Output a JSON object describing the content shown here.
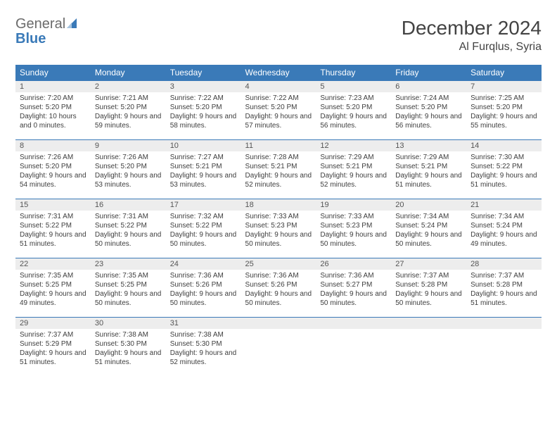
{
  "logo": {
    "text1": "General",
    "text2": "Blue",
    "color_general": "#6b6b6b",
    "color_blue": "#3a7ab8"
  },
  "header": {
    "title": "December 2024",
    "location": "Al Furqlus, Syria"
  },
  "styling": {
    "header_bg": "#3a7ab8",
    "header_text": "#ffffff",
    "daynum_bg": "#ededed",
    "border_color": "#3a7ab8",
    "body_bg": "#ffffff",
    "text_color": "#3e3e3e",
    "title_fontsize": 28,
    "location_fontsize": 16,
    "dayheader_fontsize": 12,
    "daynum_fontsize": 11,
    "body_fontsize": 10
  },
  "weekdays": [
    "Sunday",
    "Monday",
    "Tuesday",
    "Wednesday",
    "Thursday",
    "Friday",
    "Saturday"
  ],
  "days": [
    {
      "n": "1",
      "sunrise": "Sunrise: 7:20 AM",
      "sunset": "Sunset: 5:20 PM",
      "day": "Daylight: 10 hours and 0 minutes."
    },
    {
      "n": "2",
      "sunrise": "Sunrise: 7:21 AM",
      "sunset": "Sunset: 5:20 PM",
      "day": "Daylight: 9 hours and 59 minutes."
    },
    {
      "n": "3",
      "sunrise": "Sunrise: 7:22 AM",
      "sunset": "Sunset: 5:20 PM",
      "day": "Daylight: 9 hours and 58 minutes."
    },
    {
      "n": "4",
      "sunrise": "Sunrise: 7:22 AM",
      "sunset": "Sunset: 5:20 PM",
      "day": "Daylight: 9 hours and 57 minutes."
    },
    {
      "n": "5",
      "sunrise": "Sunrise: 7:23 AM",
      "sunset": "Sunset: 5:20 PM",
      "day": "Daylight: 9 hours and 56 minutes."
    },
    {
      "n": "6",
      "sunrise": "Sunrise: 7:24 AM",
      "sunset": "Sunset: 5:20 PM",
      "day": "Daylight: 9 hours and 56 minutes."
    },
    {
      "n": "7",
      "sunrise": "Sunrise: 7:25 AM",
      "sunset": "Sunset: 5:20 PM",
      "day": "Daylight: 9 hours and 55 minutes."
    },
    {
      "n": "8",
      "sunrise": "Sunrise: 7:26 AM",
      "sunset": "Sunset: 5:20 PM",
      "day": "Daylight: 9 hours and 54 minutes."
    },
    {
      "n": "9",
      "sunrise": "Sunrise: 7:26 AM",
      "sunset": "Sunset: 5:20 PM",
      "day": "Daylight: 9 hours and 53 minutes."
    },
    {
      "n": "10",
      "sunrise": "Sunrise: 7:27 AM",
      "sunset": "Sunset: 5:21 PM",
      "day": "Daylight: 9 hours and 53 minutes."
    },
    {
      "n": "11",
      "sunrise": "Sunrise: 7:28 AM",
      "sunset": "Sunset: 5:21 PM",
      "day": "Daylight: 9 hours and 52 minutes."
    },
    {
      "n": "12",
      "sunrise": "Sunrise: 7:29 AM",
      "sunset": "Sunset: 5:21 PM",
      "day": "Daylight: 9 hours and 52 minutes."
    },
    {
      "n": "13",
      "sunrise": "Sunrise: 7:29 AM",
      "sunset": "Sunset: 5:21 PM",
      "day": "Daylight: 9 hours and 51 minutes."
    },
    {
      "n": "14",
      "sunrise": "Sunrise: 7:30 AM",
      "sunset": "Sunset: 5:22 PM",
      "day": "Daylight: 9 hours and 51 minutes."
    },
    {
      "n": "15",
      "sunrise": "Sunrise: 7:31 AM",
      "sunset": "Sunset: 5:22 PM",
      "day": "Daylight: 9 hours and 51 minutes."
    },
    {
      "n": "16",
      "sunrise": "Sunrise: 7:31 AM",
      "sunset": "Sunset: 5:22 PM",
      "day": "Daylight: 9 hours and 50 minutes."
    },
    {
      "n": "17",
      "sunrise": "Sunrise: 7:32 AM",
      "sunset": "Sunset: 5:22 PM",
      "day": "Daylight: 9 hours and 50 minutes."
    },
    {
      "n": "18",
      "sunrise": "Sunrise: 7:33 AM",
      "sunset": "Sunset: 5:23 PM",
      "day": "Daylight: 9 hours and 50 minutes."
    },
    {
      "n": "19",
      "sunrise": "Sunrise: 7:33 AM",
      "sunset": "Sunset: 5:23 PM",
      "day": "Daylight: 9 hours and 50 minutes."
    },
    {
      "n": "20",
      "sunrise": "Sunrise: 7:34 AM",
      "sunset": "Sunset: 5:24 PM",
      "day": "Daylight: 9 hours and 50 minutes."
    },
    {
      "n": "21",
      "sunrise": "Sunrise: 7:34 AM",
      "sunset": "Sunset: 5:24 PM",
      "day": "Daylight: 9 hours and 49 minutes."
    },
    {
      "n": "22",
      "sunrise": "Sunrise: 7:35 AM",
      "sunset": "Sunset: 5:25 PM",
      "day": "Daylight: 9 hours and 49 minutes."
    },
    {
      "n": "23",
      "sunrise": "Sunrise: 7:35 AM",
      "sunset": "Sunset: 5:25 PM",
      "day": "Daylight: 9 hours and 50 minutes."
    },
    {
      "n": "24",
      "sunrise": "Sunrise: 7:36 AM",
      "sunset": "Sunset: 5:26 PM",
      "day": "Daylight: 9 hours and 50 minutes."
    },
    {
      "n": "25",
      "sunrise": "Sunrise: 7:36 AM",
      "sunset": "Sunset: 5:26 PM",
      "day": "Daylight: 9 hours and 50 minutes."
    },
    {
      "n": "26",
      "sunrise": "Sunrise: 7:36 AM",
      "sunset": "Sunset: 5:27 PM",
      "day": "Daylight: 9 hours and 50 minutes."
    },
    {
      "n": "27",
      "sunrise": "Sunrise: 7:37 AM",
      "sunset": "Sunset: 5:28 PM",
      "day": "Daylight: 9 hours and 50 minutes."
    },
    {
      "n": "28",
      "sunrise": "Sunrise: 7:37 AM",
      "sunset": "Sunset: 5:28 PM",
      "day": "Daylight: 9 hours and 51 minutes."
    },
    {
      "n": "29",
      "sunrise": "Sunrise: 7:37 AM",
      "sunset": "Sunset: 5:29 PM",
      "day": "Daylight: 9 hours and 51 minutes."
    },
    {
      "n": "30",
      "sunrise": "Sunrise: 7:38 AM",
      "sunset": "Sunset: 5:30 PM",
      "day": "Daylight: 9 hours and 51 minutes."
    },
    {
      "n": "31",
      "sunrise": "Sunrise: 7:38 AM",
      "sunset": "Sunset: 5:30 PM",
      "day": "Daylight: 9 hours and 52 minutes."
    }
  ]
}
